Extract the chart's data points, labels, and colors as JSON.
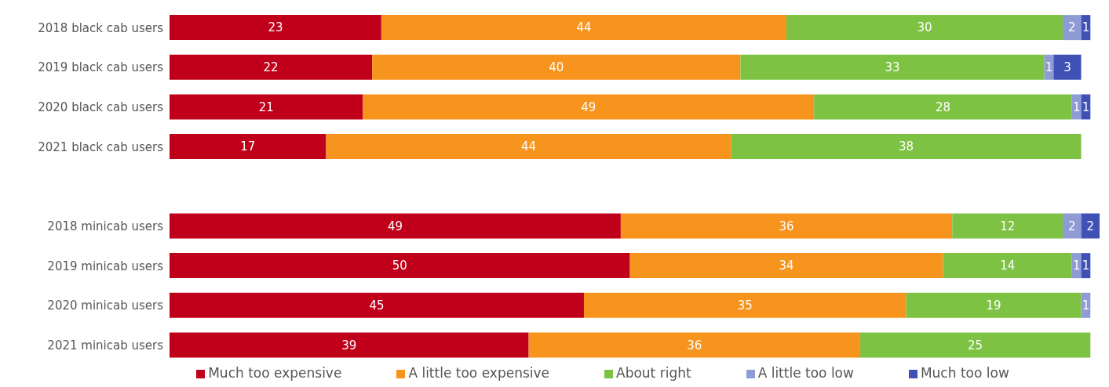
{
  "chart_data": {
    "type": "bar",
    "orientation": "horizontal",
    "stacked": true,
    "data_labels": true,
    "legend": "bottom",
    "categories": [
      "2018 black cab users",
      "2019 black cab users",
      "2020 black cab users",
      "2021 black cab users",
      null,
      "2018 minicab users",
      "2019 minicab users",
      "2020 minicab users",
      "2021 minicab users"
    ],
    "series": [
      {
        "name": "Much too expensive",
        "color": "#c0001a",
        "values": [
          23,
          22,
          21,
          17,
          null,
          49,
          50,
          45,
          39
        ]
      },
      {
        "name": "A little too expensive",
        "color": "#f7941d",
        "values": [
          44,
          40,
          49,
          44,
          null,
          36,
          34,
          35,
          36
        ]
      },
      {
        "name": "About right",
        "color": "#7dc242",
        "values": [
          30,
          33,
          28,
          38,
          null,
          12,
          14,
          19,
          25
        ]
      },
      {
        "name": "A little too low",
        "color": "#8e9bd4",
        "values": [
          2,
          1,
          1,
          null,
          null,
          2,
          1,
          1,
          null
        ]
      },
      {
        "name": "Much too low",
        "color": "#3f51b5",
        "values": [
          1,
          3,
          1,
          null,
          null,
          2,
          1,
          null,
          null
        ]
      }
    ]
  }
}
